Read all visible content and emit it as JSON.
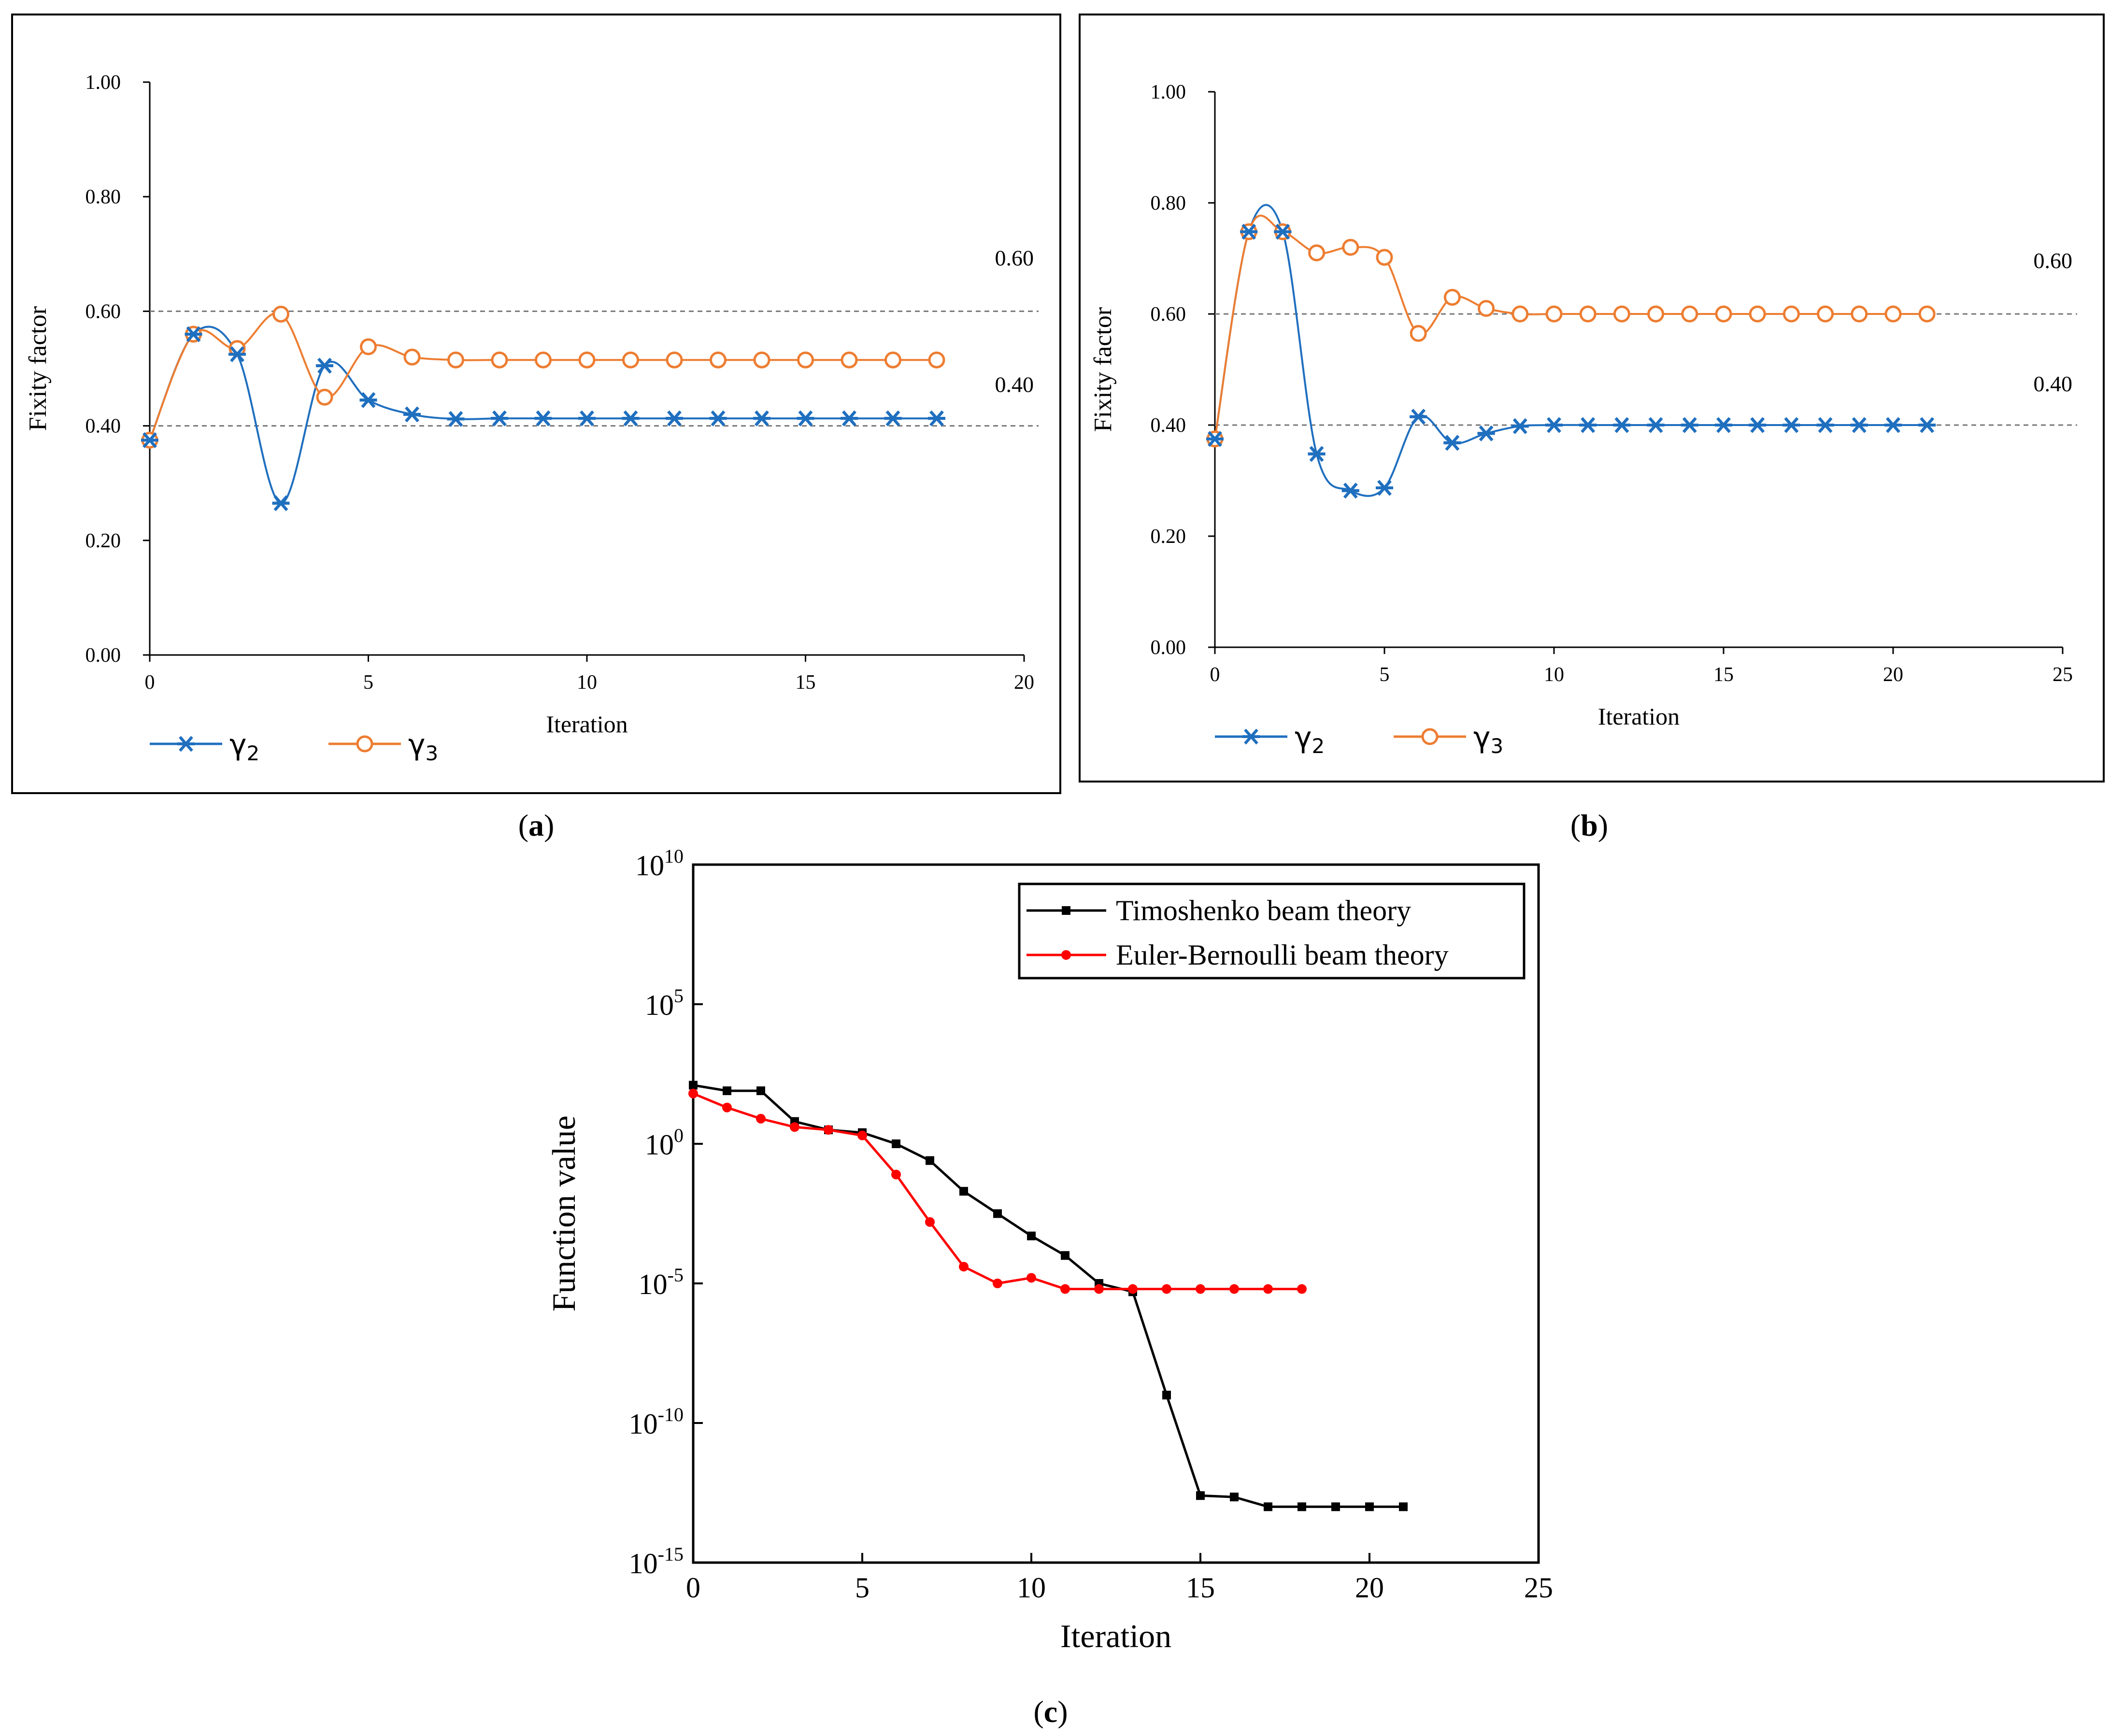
{
  "chart_data": [
    {
      "panel": "a",
      "panel_label_text": "(",
      "panel_letter": "a",
      "panel_label_close": ")",
      "type": "line",
      "x_label": "Iteration",
      "y_label": "Fixity factor",
      "xlim": [
        0,
        20
      ],
      "ylim": [
        0,
        1
      ],
      "x_ticks": [
        0,
        5,
        10,
        15,
        20
      ],
      "y_ticks": [
        0,
        0.2,
        0.4,
        0.6,
        0.8,
        1.0
      ],
      "y_tick_labels": [
        "0.00",
        "0.20",
        "0.40",
        "0.60",
        "0.80",
        "1.00"
      ],
      "reference_lines": [
        {
          "y": 0.6,
          "label": "0.60"
        },
        {
          "y": 0.4,
          "label": "0.40"
        }
      ],
      "series": [
        {
          "name": "γ2",
          "base": "γ",
          "sub": "2",
          "color": "#1f6fbf",
          "marker": "star",
          "x": [
            0,
            1,
            2,
            3,
            4,
            5,
            6,
            7,
            8,
            9,
            10,
            11,
            12,
            13,
            14,
            15,
            16,
            17,
            18
          ],
          "y": [
            0.375,
            0.56,
            0.525,
            0.265,
            0.505,
            0.445,
            0.42,
            0.412,
            0.413,
            0.413,
            0.413,
            0.413,
            0.413,
            0.413,
            0.413,
            0.413,
            0.413,
            0.413,
            0.413
          ]
        },
        {
          "name": "γ3",
          "base": "γ",
          "sub": "3",
          "color": "#ed7d31",
          "marker": "circle",
          "x": [
            0,
            1,
            2,
            3,
            4,
            5,
            6,
            7,
            8,
            9,
            10,
            11,
            12,
            13,
            14,
            15,
            16,
            17,
            18
          ],
          "y": [
            0.375,
            0.56,
            0.535,
            0.595,
            0.45,
            0.538,
            0.52,
            0.515,
            0.515,
            0.515,
            0.515,
            0.515,
            0.515,
            0.515,
            0.515,
            0.515,
            0.515,
            0.515,
            0.515
          ]
        }
      ]
    },
    {
      "panel": "b",
      "panel_label_text": "(",
      "panel_letter": "b",
      "panel_label_close": ")",
      "type": "line",
      "x_label": "Iteration",
      "y_label": "Fixity factor",
      "xlim": [
        0,
        25
      ],
      "ylim": [
        0,
        1
      ],
      "x_ticks": [
        0,
        5,
        10,
        15,
        20,
        25
      ],
      "y_ticks": [
        0,
        0.2,
        0.4,
        0.6,
        0.8,
        1.0
      ],
      "y_tick_labels": [
        "0.00",
        "0.20",
        "0.40",
        "0.60",
        "0.80",
        "1.00"
      ],
      "reference_lines": [
        {
          "y": 0.6,
          "label": "0.60"
        },
        {
          "y": 0.4,
          "label": "0.40"
        }
      ],
      "series": [
        {
          "name": "γ2",
          "base": "γ",
          "sub": "2",
          "color": "#1f6fbf",
          "marker": "star",
          "x": [
            0,
            1,
            2,
            3,
            4,
            5,
            6,
            7,
            8,
            9,
            10,
            11,
            12,
            13,
            14,
            15,
            16,
            17,
            18,
            19,
            20,
            21
          ],
          "y": [
            0.375,
            0.748,
            0.748,
            0.348,
            0.282,
            0.287,
            0.415,
            0.368,
            0.385,
            0.398,
            0.4,
            0.4,
            0.4,
            0.4,
            0.4,
            0.4,
            0.4,
            0.4,
            0.4,
            0.4,
            0.4,
            0.4
          ]
        },
        {
          "name": "γ3",
          "base": "γ",
          "sub": "3",
          "color": "#ed7d31",
          "marker": "circle",
          "x": [
            0,
            1,
            2,
            3,
            4,
            5,
            6,
            7,
            8,
            9,
            10,
            11,
            12,
            13,
            14,
            15,
            16,
            17,
            18,
            19,
            20,
            21
          ],
          "y": [
            0.375,
            0.748,
            0.748,
            0.71,
            0.72,
            0.702,
            0.565,
            0.63,
            0.61,
            0.6,
            0.6,
            0.6,
            0.6,
            0.6,
            0.6,
            0.6,
            0.6,
            0.6,
            0.6,
            0.6,
            0.6,
            0.6
          ]
        }
      ]
    },
    {
      "panel": "c",
      "panel_label_text": "(",
      "panel_letter": "c",
      "panel_label_close": ")",
      "type": "line",
      "y_scale": "log",
      "x_label": "Iteration",
      "y_label": "Function value",
      "xlim": [
        0,
        25
      ],
      "ylim_log10": [
        -15,
        10
      ],
      "x_ticks": [
        0,
        5,
        10,
        15,
        20,
        25
      ],
      "y_tick_exponents": [
        10,
        5,
        0,
        -5,
        -10,
        -15
      ],
      "y_tick_base": "10",
      "legend_position": "top-right",
      "series": [
        {
          "name": "Timoshenko beam theory",
          "color": "#000000",
          "marker": "square",
          "x": [
            0,
            1,
            2,
            3,
            4,
            5,
            6,
            7,
            8,
            9,
            10,
            11,
            12,
            13,
            14,
            15,
            16,
            17,
            18,
            19,
            20,
            21
          ],
          "log10_y": [
            2.1,
            1.9,
            1.9,
            0.8,
            0.5,
            0.4,
            0.0,
            -0.6,
            -1.7,
            -2.5,
            -3.3,
            -4.0,
            -5.0,
            -5.3,
            -9.0,
            -12.6,
            -12.65,
            -13.0,
            -13.0,
            -13.0,
            -13.0,
            -13.0
          ]
        },
        {
          "name": "Euler-Bernoulli beam theory",
          "color": "#ff0000",
          "marker": "dot",
          "x": [
            0,
            1,
            2,
            3,
            4,
            5,
            6,
            7,
            8,
            9,
            10,
            11,
            12,
            13,
            14,
            15,
            16,
            17,
            18
          ],
          "log10_y": [
            1.8,
            1.3,
            0.9,
            0.6,
            0.5,
            0.3,
            -1.1,
            -2.8,
            -4.4,
            -5.0,
            -4.8,
            -5.2,
            -5.2,
            -5.2,
            -5.2,
            -5.2,
            -5.2,
            -5.2,
            -5.2
          ]
        }
      ]
    }
  ]
}
